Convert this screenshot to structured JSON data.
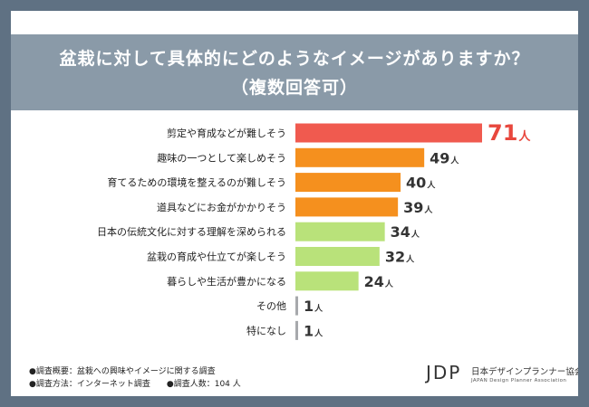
{
  "header": {
    "title_line1": "盆栽に対して具体的にどのようなイメージがありますか？",
    "title_line2": "（複数回答可）"
  },
  "chart_data": {
    "type": "bar",
    "orientation": "horizontal",
    "unit": "人",
    "categories": [
      "剪定や育成などが難しそう",
      "趣味の一つとして楽しめそう",
      "育てるための環境を整えるのが難しそう",
      "道具などにお金がかかりそう",
      "日本の伝統文化に対する理解を深められる",
      "盆栽の育成や仕立てが楽しそう",
      "暮らしや生活が豊かになる",
      "その他",
      "特になし"
    ],
    "values": [
      71,
      49,
      40,
      39,
      34,
      32,
      24,
      1,
      1
    ],
    "colors": [
      "#f05a4f",
      "#f5901e",
      "#f5901e",
      "#f5901e",
      "#b9e27a",
      "#b9e27a",
      "#b9e27a",
      "#a7a9ac",
      "#a7a9ac"
    ],
    "highlight_color": "#e8473d",
    "label_color": "#333333"
  },
  "footnotes": {
    "survey_overview": "●調査概要：盆栽への興味やイメージに関する調査",
    "survey_method": "●調査方法：インターネット調査",
    "respondents": "●調査人数：104 人"
  },
  "logo": {
    "mark": "JDP",
    "name_jp": "日本デザインプランナー協会",
    "name_en": "JAPAN Design Planner Association"
  }
}
